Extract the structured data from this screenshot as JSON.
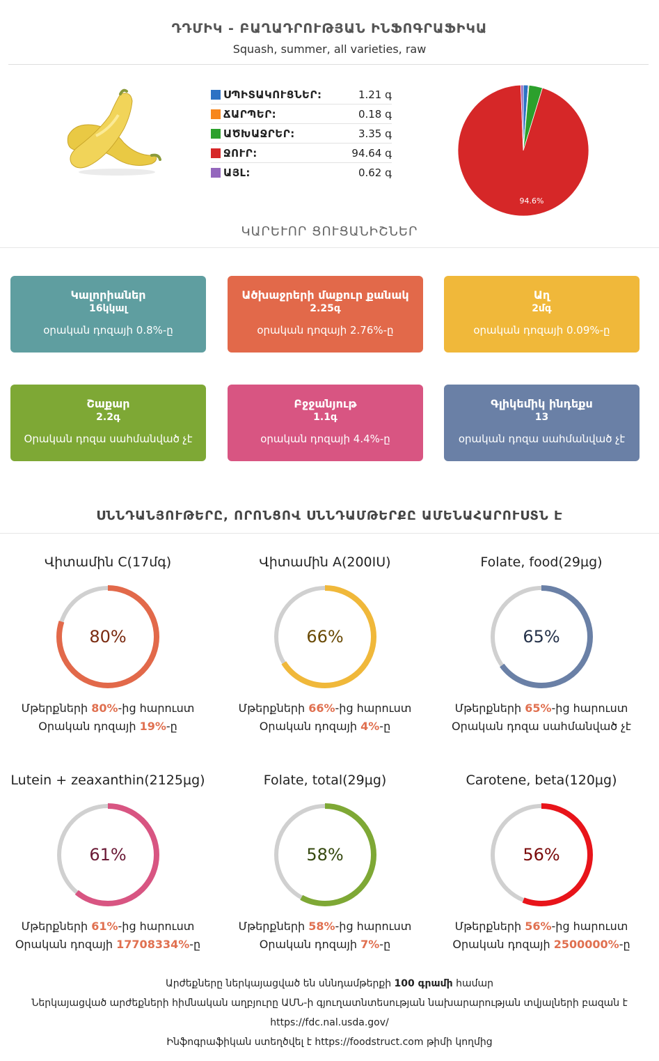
{
  "header": {
    "title": "ԴԴՄԻԿ - ԲԱՂԱԴՐՈՒԹՅԱՆ ԻՆՖՈԳՐԱՖԻԿԱ",
    "subtitle": "Squash, summer, all varieties, raw"
  },
  "macros": [
    {
      "label": "ՍՊԻՏԱԿՈՒՑՆԵՐ:",
      "value": "1.21 գ",
      "color": "#2d72c4"
    },
    {
      "label": "ՃԱՐՊԵՐ:",
      "value": "0.18 գ",
      "color": "#f7861c"
    },
    {
      "label": "ԱԾԽԱՋՐԵՐ:",
      "value": "3.35 գ",
      "color": "#2ca02c"
    },
    {
      "label": "ՋՈՒՐ:",
      "value": "94.64 գ",
      "color": "#d62728"
    },
    {
      "label": "ԱՅԼ:",
      "value": "0.62 գ",
      "color": "#9467bd"
    }
  ],
  "pie": {
    "label": "94.6%",
    "values": [
      1.21,
      0.18,
      3.35,
      94.64,
      0.62
    ]
  },
  "key_indicators": {
    "title": "ԿԱՐԵՒՈՐ ՑՈՒՑԱՆԻՇՆԵՐ",
    "cards": [
      {
        "name": "Կալորիաներ",
        "value": "16կկալ",
        "sub": "օրական դոզայի 0.8%-ը",
        "color": "#5f9ea0"
      },
      {
        "name": "Ածխաջրերի մաքուր քանակ",
        "value": "2.25գ",
        "sub": "օրական դոզայի 2.76%-ը",
        "color": "#e2694a"
      },
      {
        "name": "Աղ",
        "value": "2մգ",
        "sub": "օրական դոզայի 0.09%-ը",
        "color": "#f0b83a"
      },
      {
        "name": "Շաքար",
        "value": "2.2գ",
        "sub": "Օրական դոզա սահմանված չէ",
        "color": "#7ea835"
      },
      {
        "name": "Բջջանյութ",
        "value": "1.1գ",
        "sub": "օրական դոզայի 4.4%-ը",
        "color": "#d85582"
      },
      {
        "name": "Գլիկեմիկ ինդեքս",
        "value": "13",
        "sub": "օրական դոզա սահմանված չէ",
        "color": "#6a80a6"
      }
    ]
  },
  "nutrients": {
    "title": "ՍՆՆԴԱՆՅՈՒԹԵՐԸ, ՈՐՈՆՑՈՎ ՍՆՆԴԱՄԹԵՐՔԸ ԱՄԵՆԱՀԱՐՈՒՍՏՆ Է",
    "items": [
      {
        "name": "Վիտամին C(17մգ)",
        "percent": 80,
        "percent_label": "80%",
        "color": "#e2694a",
        "text_color": "#7a2a10",
        "l1_pre": "Մթերքների ",
        "l1_bold": "80%",
        "l1_post": "-ից հարուստ",
        "l2_pre": "Օրական դոզայի ",
        "l2_bold": "19%",
        "l2_post": "-ը"
      },
      {
        "name": "Վիտամին A(200IU)",
        "percent": 66,
        "percent_label": "66%",
        "color": "#f0b83a",
        "text_color": "#6a4a05",
        "l1_pre": "Մթերքների ",
        "l1_bold": "66%",
        "l1_post": "-ից հարուստ",
        "l2_pre": "Օրական դոզայի ",
        "l2_bold": "4%",
        "l2_post": "-ը"
      },
      {
        "name": "Folate, food(29µg)",
        "percent": 65,
        "percent_label": "65%",
        "color": "#6a80a6",
        "text_color": "#25324a",
        "l1_pre": "Մթերքների ",
        "l1_bold": "65%",
        "l1_post": "-ից հարուստ",
        "l2_pre": "Օրական դոզա սահմանված չէ",
        "l2_bold": "",
        "l2_post": ""
      },
      {
        "name": "Lutein + zeaxanthin(2125µg)",
        "percent": 61,
        "percent_label": "61%",
        "color": "#d85582",
        "text_color": "#6a1a36",
        "l1_pre": "Մթերքների ",
        "l1_bold": "61%",
        "l1_post": "-ից հարուստ",
        "l2_pre": "Օրական դոզայի ",
        "l2_bold": "17708334%",
        "l2_post": "-ը"
      },
      {
        "name": "Folate, total(29µg)",
        "percent": 58,
        "percent_label": "58%",
        "color": "#7ea835",
        "text_color": "#35480f",
        "l1_pre": "Մթերքների ",
        "l1_bold": "58%",
        "l1_post": "-ից հարուստ",
        "l2_pre": "Օրական դոզայի ",
        "l2_bold": "7%",
        "l2_post": "-ը"
      },
      {
        "name": "Carotene, beta(120µg)",
        "percent": 56,
        "percent_label": "56%",
        "color": "#e8141a",
        "text_color": "#7a0a0a",
        "l1_pre": "Մթերքների ",
        "l1_bold": "56%",
        "l1_post": "-ից հարուստ",
        "l2_pre": "Օրական դոզայի ",
        "l2_bold": "2500000%",
        "l2_post": "-ը"
      }
    ]
  },
  "footer": {
    "line1_pre": "Արժեքները ներկայացված են սննդամթերքի ",
    "line1_bold": "100 գրամի",
    "line1_post": " համար",
    "line2": "Ներկայացված արժեքների հիմնական աղբյուրը ԱՄՆ-ի գյուղատնտեսության նախարարության տվյալների բազան է",
    "line3": "https://fdc.nal.usda.gov/",
    "line4_pre": "Ինֆոգրաֆիկան ստեղծվել է ",
    "line4_link": "https://foodstruct.com",
    "line4_post": " թիմի կողմից"
  }
}
